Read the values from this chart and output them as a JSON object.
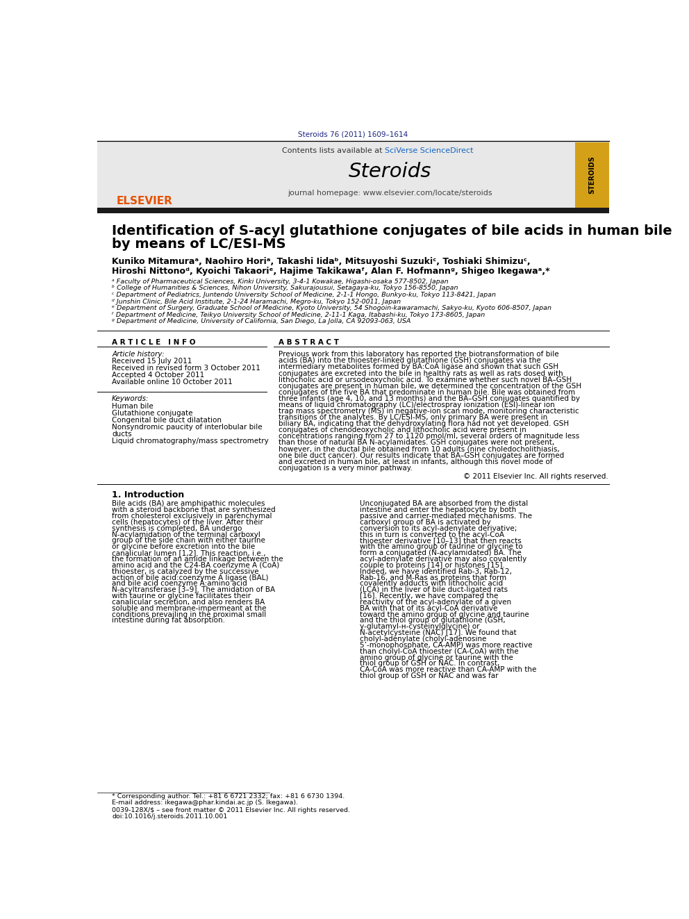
{
  "journal_ref": "Steroids 76 (2011) 1609–1614",
  "journal_name": "Steroids",
  "contents_line": "Contents lists available at SciVerse ScienceDirect",
  "journal_homepage": "journal homepage: www.elsevier.com/locate/steroids",
  "title_line1": "Identification of S-acyl glutathione conjugates of bile acids in human bile",
  "title_line2": "by means of LC/ESI-MS",
  "authors": "Kuniko Mitamuraᵃ, Naohiro Horiᵃ, Takashi Iidaᵇ, Mitsuyoshi Suzukiᶜ, Toshiaki Shimizuᶜ,",
  "authors2": "Hiroshi Nittonoᵈ, Kyoichi Takaoriᵉ, Hajime Takikawaᶠ, Alan F. Hofmannᵍ, Shigeo Ikegawaᵃ,*",
  "affil_a": "ᵃ Faculty of Pharmaceutical Sciences, Kinki University, 3-4-1 Kowakae, Higashi-osaka 577-8502, Japan",
  "affil_b": "ᵇ College of Humanities & Sciences, Nihon University, Sakurajousui, Setagaya-ku, Tokyo 156-8550, Japan",
  "affil_c": "ᶜ Department of Pediatrics, Juntendo University School of Medicine, 2-1-1 Hongo, Bunkyo-ku, Tokyo 113-8421, Japan",
  "affil_d": "ᵈ Junshin Clinic, Bile Acid Institute, 2-1-24 Haramachi, Megro-ku, Tokyo 152-0011, Japan",
  "affil_e": "ᵉ Department of Surgery, Graduate School of Medicine, Kyoto University, 54 Shogoin-kawaramachi, Sakyo-ku, Kyoto 606-8507, Japan",
  "affil_f": "ᶠ Department of Medicine, Teikyo University School of Medicine, 2-11-1 Kaga, Itabashi-ku, Tokyo 173-8605, Japan",
  "affil_g": "ᵍ Department of Medicine, University of California, San Diego, La Jolla, CA 92093-063, USA",
  "article_info_header": "A R T I C L E   I N F O",
  "abstract_header": "A B S T R A C T",
  "article_history_label": "Article history:",
  "received": "Received 15 July 2011",
  "revised": "Received in revised form 3 October 2011",
  "accepted": "Accepted 4 October 2011",
  "available": "Available online 10 October 2011",
  "keywords_label": "Keywords:",
  "kw1": "Human bile",
  "kw2": "Glutathione conjugate",
  "kw3": "Congenital bile duct dilatation",
  "kw4a": "Nonsyndromic paucity of interlobular bile",
  "kw4b": "ducts",
  "kw5": "Liquid chromatography/mass spectrometry",
  "abstract_text": "Previous work from this laboratory has reported the biotransformation of bile acids (BA) into the thioester-linked glutathione (GSH) conjugates via the intermediary metabolites formed by BA:CoA ligase and shown that such GSH conjugates are excreted into the bile in healthy rats as well as rats dosed with lithocholic acid or ursodeoxycholic acid. To examine whether such novel BA–GSH conjugates are present in human bile, we determined the concentration of the GSH conjugates of the five BA that predominate in human bile. Bile was obtained from three infants (age 4, 10, and 13 months) and the BA–GSH conjugates quantified by means of liquid chromatography (LC)/electrospray ionization (ESI)-linear ion trap mass spectrometry (MS) in negative-ion scan mode, monitoring characteristic transitions of the analytes. By LC/ESI-MS, only primary BA were present in biliary BA, indicating that the dehydroxylating flora had not yet developed. GSH conjugates of chenodeoxycholic and lithocholic acid were present in concentrations ranging from 27 to 1120 pmol/ml, several orders of magnitude less than those of natural BA N-acylamidates. GSH conjugates were not present, however, in the ductal bile obtained from 10 adults (nine choledocholithiasis, one bile duct cancer). Our results indicate that BA–GSH conjugates are formed and excreted in human bile, at least in infants, although this novel mode of conjugation is a very minor pathway.",
  "copyright": "© 2011 Elsevier Inc. All rights reserved.",
  "intro_header": "1. Introduction",
  "intro_col1": "Bile acids (BA) are amphipathic molecules with a steroid backbone that are synthesized from cholesterol exclusively in parenchymal cells (hepatocytes) of the liver. After their synthesis is completed, BA undergo N-acylamidation of the terminal carboxyl group of the side chain with either taurine or glycine before excretion into the bile canalicular lumen [1,2]. This reaction, i.e., the formation of an amide linkage between the amino acid and the C24-BA coenzyme A (CoA) thioester, is catalyzed by the successive action of bile acid:coenzyme A ligase (BAL) and bile acid coenzyme A:amino acid N-acyltransferase [3–9]. The amidation of BA with taurine or glycine facilitates their canalicular secretion, and also renders BA soluble and membrane-impermeant at the conditions prevailing in the proximal small intestine during fat absorption.",
  "intro_col2": "Unconjugated BA are absorbed from the distal intestine and enter the hepatocyte by both passive and carrier-mediated mechanisms. The carboxyl group of BA is activated by conversion to its acyl-adenylate derivative; this in turn is converted to the acyl-CoA thioester derivative [10–13] that then reacts with the amino group of taurine or glycine to form a conjugated (N-acylamidated) BA. The acyl-adenylate derivative may also covalently couple to proteins [14] or histones [15]. Indeed, we have identified Rab-3, Rab-12, Rab-16, and M-Ras as proteins that form covalently adducts with lithocholic acid (LCA) in the liver of bile duct-ligated rats [16]. Recently, we have compared the reactivity of the acyl-adenylate of a given BA with that of its acyl-CoA derivative toward the amino group of glycine and taurine and the thiol group of glutathione (GSH, γ-glutamyl-ʜ-cysteinylglycine) or N-acetylcysteine (NAC) [17]. We found that cholyl-adenylate (cholyl-adenosine 5’-monophosphate, CA-AMP) was more reactive than cholyl-CoA thioester (CA-CoA) with the amino group of glycine or taurine with the thiol group of GSH or NAC. In contrast, CA-CoA was more reactive than CA-AMP with the thiol group of GSH or NAC and was far",
  "footnote_corr": "* Corresponding author. Tel.: +81 6 6721 2332; fax: +81 6 6730 1394.",
  "footnote_email": "E-mail address: ikegawa@phar.kindai.ac.jp (S. Ikegawa).",
  "issn_line": "0039-128X/$ – see front matter © 2011 Elsevier Inc. All rights reserved.",
  "doi_line": "doi:10.1016/j.steroids.2011.10.001"
}
